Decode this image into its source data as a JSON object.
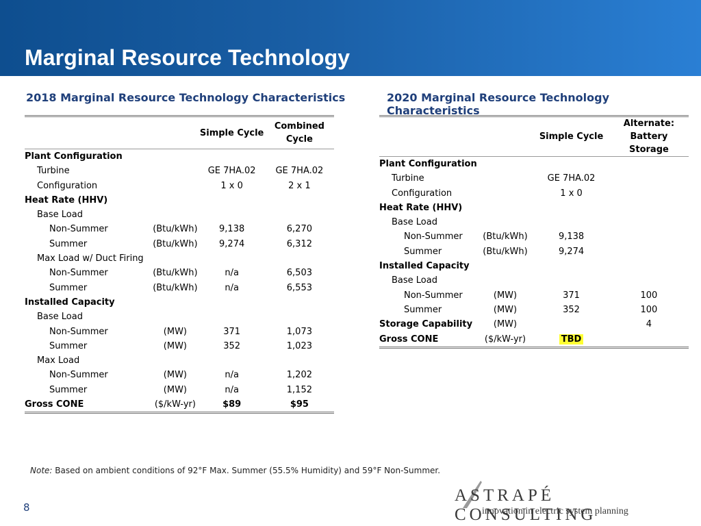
{
  "header": {
    "title": "Marginal Resource Technology"
  },
  "table2018": {
    "title": "2018 Marginal Resource Technology Characteristics",
    "col_headers": [
      "Simple Cycle",
      "Combined Cycle"
    ],
    "rows": [
      {
        "label": "Plant Configuration",
        "level": 0,
        "bold": true,
        "unit": "",
        "v1": "",
        "v2": ""
      },
      {
        "label": "Turbine",
        "level": 1,
        "bold": false,
        "unit": "",
        "v1": "GE 7HA.02",
        "v2": "GE 7HA.02"
      },
      {
        "label": "Configuration",
        "level": 1,
        "bold": false,
        "unit": "",
        "v1": "1 x 0",
        "v2": "2 x 1"
      },
      {
        "label": "Heat Rate (HHV)",
        "level": 0,
        "bold": true,
        "unit": "",
        "v1": "",
        "v2": ""
      },
      {
        "label": "Base Load",
        "level": 1,
        "bold": false,
        "unit": "",
        "v1": "",
        "v2": ""
      },
      {
        "label": "Non-Summer",
        "level": 2,
        "bold": false,
        "unit": "(Btu/kWh)",
        "v1": "9,138",
        "v2": "6,270"
      },
      {
        "label": "Summer",
        "level": 2,
        "bold": false,
        "unit": "(Btu/kWh)",
        "v1": "9,274",
        "v2": "6,312"
      },
      {
        "label": "Max Load w/ Duct Firing",
        "level": 1,
        "bold": false,
        "unit": "",
        "v1": "",
        "v2": ""
      },
      {
        "label": "Non-Summer",
        "level": 2,
        "bold": false,
        "unit": "(Btu/kWh)",
        "v1": "n/a",
        "v2": "6,503"
      },
      {
        "label": "Summer",
        "level": 2,
        "bold": false,
        "unit": "(Btu/kWh)",
        "v1": "n/a",
        "v2": "6,553"
      },
      {
        "label": "Installed Capacity",
        "level": 0,
        "bold": true,
        "unit": "",
        "v1": "",
        "v2": ""
      },
      {
        "label": "Base Load",
        "level": 1,
        "bold": false,
        "unit": "",
        "v1": "",
        "v2": ""
      },
      {
        "label": "Non-Summer",
        "level": 2,
        "bold": false,
        "unit": "(MW)",
        "v1": "371",
        "v2": "1,073"
      },
      {
        "label": "Summer",
        "level": 2,
        "bold": false,
        "unit": "(MW)",
        "v1": "352",
        "v2": "1,023"
      },
      {
        "label": "Max Load",
        "level": 1,
        "bold": false,
        "unit": "",
        "v1": "",
        "v2": ""
      },
      {
        "label": "Non-Summer",
        "level": 2,
        "bold": false,
        "unit": "(MW)",
        "v1": "n/a",
        "v2": "1,202"
      },
      {
        "label": "Summer",
        "level": 2,
        "bold": false,
        "unit": "(MW)",
        "v1": "n/a",
        "v2": "1,152"
      },
      {
        "label": "Gross CONE",
        "level": 0,
        "bold": true,
        "unit": "($/kW-yr)",
        "v1": "$89",
        "v2": "$95",
        "bold_values": true
      }
    ]
  },
  "table2020": {
    "title": "2020 Marginal Resource Technology Characteristics",
    "col_headers": [
      "Simple Cycle",
      "Alternate: Battery Storage"
    ],
    "rows": [
      {
        "label": "Plant Configuration",
        "level": 0,
        "bold": true,
        "unit": "",
        "v1": "",
        "v2": ""
      },
      {
        "label": "Turbine",
        "level": 1,
        "bold": false,
        "unit": "",
        "v1": "GE 7HA.02",
        "v2": ""
      },
      {
        "label": "Configuration",
        "level": 1,
        "bold": false,
        "unit": "",
        "v1": "1 x 0",
        "v2": ""
      },
      {
        "label": "Heat Rate (HHV)",
        "level": 0,
        "bold": true,
        "unit": "",
        "v1": "",
        "v2": ""
      },
      {
        "label": "Base Load",
        "level": 1,
        "bold": false,
        "unit": "",
        "v1": "",
        "v2": ""
      },
      {
        "label": "Non-Summer",
        "level": 2,
        "bold": false,
        "unit": "(Btu/kWh)",
        "v1": "9,138",
        "v2": ""
      },
      {
        "label": "Summer",
        "level": 2,
        "bold": false,
        "unit": "(Btu/kWh)",
        "v1": "9,274",
        "v2": ""
      },
      {
        "label": "Installed Capacity",
        "level": 0,
        "bold": true,
        "unit": "",
        "v1": "",
        "v2": ""
      },
      {
        "label": "Base Load",
        "level": 1,
        "bold": false,
        "unit": "",
        "v1": "",
        "v2": ""
      },
      {
        "label": "Non-Summer",
        "level": 2,
        "bold": false,
        "unit": "(MW)",
        "v1": "371",
        "v2": "100"
      },
      {
        "label": "Summer",
        "level": 2,
        "bold": false,
        "unit": "(MW)",
        "v1": "352",
        "v2": "100"
      },
      {
        "label": "Storage Capability",
        "level": 0,
        "bold": true,
        "unit": "(MW)",
        "v1": "",
        "v2": "4"
      },
      {
        "label": "Gross CONE",
        "level": 0,
        "bold": true,
        "unit": "($/kW-yr)",
        "v1": "TBD",
        "v2": "",
        "highlight_v1": true,
        "bold_values": true
      }
    ]
  },
  "note": {
    "prefix": "Note:",
    "text": " Based on ambient conditions of 92°F Max. Summer (55.5% Humidity) and 59°F Non-Summer."
  },
  "page_number": "8",
  "logo": {
    "wordmark": "ASTRAPÉ CONSULTING",
    "tagline": "innovation in electric system planning"
  },
  "colors": {
    "header_gradient_start": "#0e4e8f",
    "header_gradient_end": "#2a7fd4",
    "section_title": "#1f3f7a",
    "highlight": "#ffff33"
  }
}
